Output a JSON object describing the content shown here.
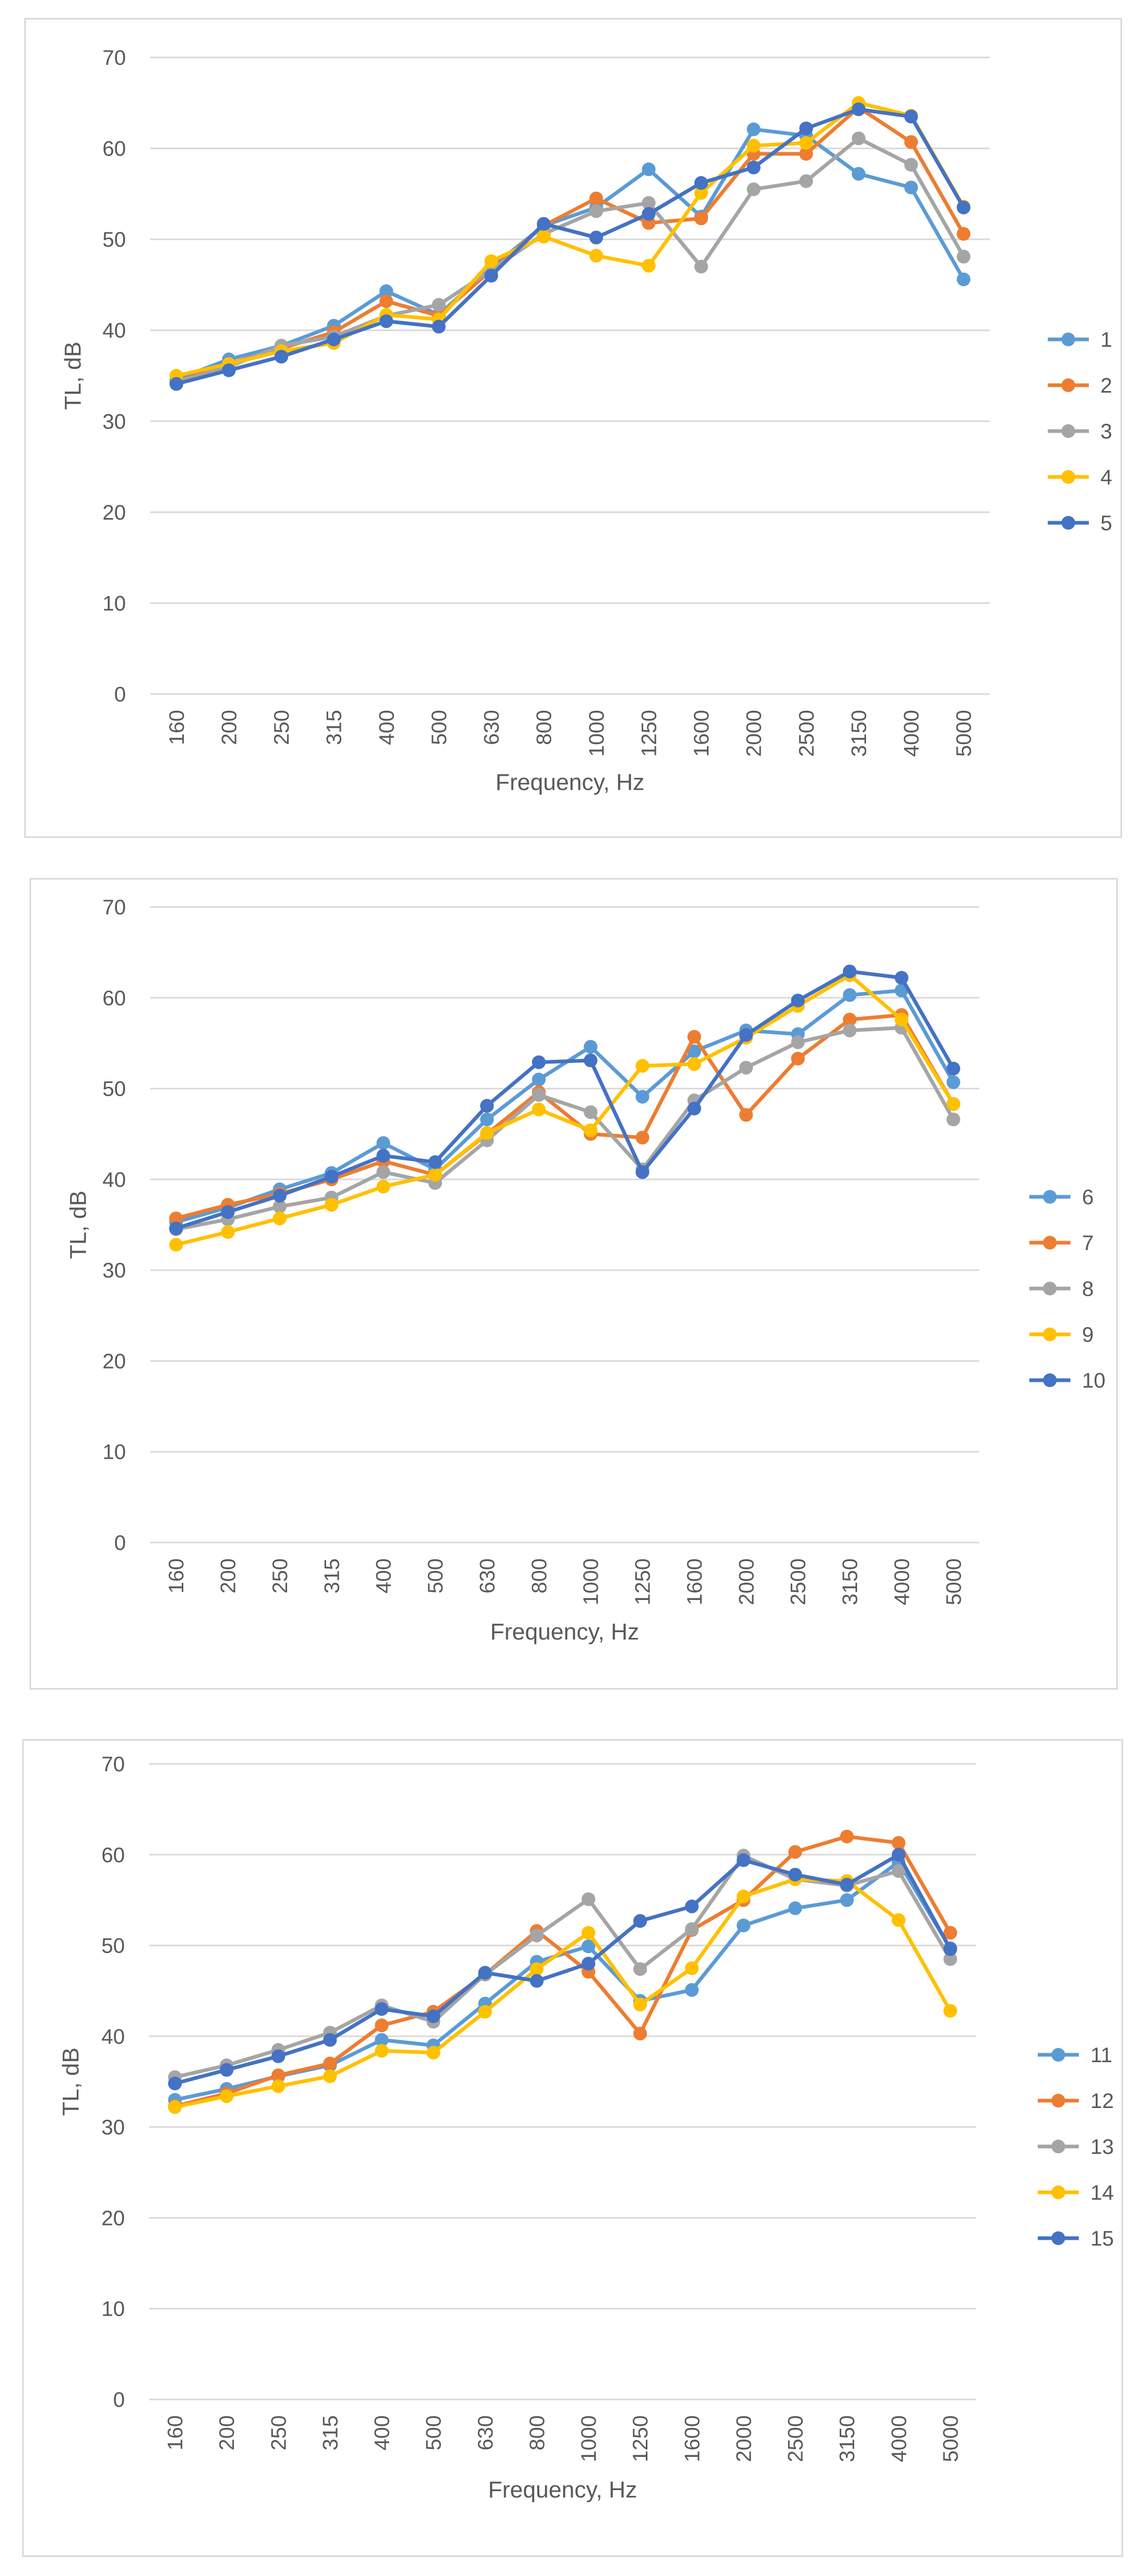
{
  "chart_data": [
    {
      "type": "line",
      "xlabel": "Frequency, Hz",
      "ylabel": "TL, dB",
      "ylim": [
        0,
        70
      ],
      "yticks": [
        0,
        10,
        20,
        30,
        40,
        50,
        60,
        70
      ],
      "grid": true,
      "legend": "right",
      "categories": [
        "160",
        "200",
        "250",
        "315",
        "400",
        "500",
        "630",
        "800",
        "1000",
        "1250",
        "1600",
        "2000",
        "2500",
        "3150",
        "4000",
        "5000"
      ],
      "series": [
        {
          "name": "1",
          "color": "#5B9BD5",
          "values": [
            34.6,
            36.8,
            38.3,
            40.5,
            44.3,
            41.7,
            46.9,
            51.5,
            53.5,
            57.7,
            52.5,
            62.1,
            61.4,
            57.2,
            55.7,
            45.6
          ]
        },
        {
          "name": "2",
          "color": "#ED7D31",
          "values": [
            34.3,
            36.3,
            38.0,
            39.8,
            43.2,
            41.6,
            46.6,
            51.5,
            54.5,
            51.8,
            52.3,
            59.4,
            59.4,
            64.5,
            60.7,
            50.6
          ]
        },
        {
          "name": "3",
          "color": "#A5A5A5",
          "values": [
            34.3,
            36.0,
            38.3,
            39.3,
            41.6,
            42.8,
            46.6,
            50.6,
            53.1,
            54.0,
            47.0,
            55.5,
            56.4,
            61.1,
            58.2,
            48.1
          ]
        },
        {
          "name": "4",
          "color": "#FFC000",
          "values": [
            35.0,
            36.3,
            37.7,
            38.6,
            41.7,
            41.2,
            47.6,
            50.3,
            48.2,
            47.1,
            55.1,
            60.3,
            60.6,
            65.0,
            63.6,
            53.6
          ]
        },
        {
          "name": "5",
          "color": "#4472C4",
          "values": [
            34.1,
            35.6,
            37.1,
            39.0,
            41.0,
            40.4,
            46.0,
            51.7,
            50.2,
            52.8,
            56.2,
            57.9,
            62.2,
            64.3,
            63.5,
            53.5
          ]
        }
      ]
    },
    {
      "type": "line",
      "xlabel": "Frequency, Hz",
      "ylabel": "TL, dB",
      "ylim": [
        0,
        70
      ],
      "yticks": [
        0,
        10,
        20,
        30,
        40,
        50,
        60,
        70
      ],
      "grid": true,
      "legend": "right",
      "categories": [
        "160",
        "200",
        "250",
        "315",
        "400",
        "500",
        "630",
        "800",
        "1000",
        "1250",
        "1600",
        "2000",
        "2500",
        "3150",
        "4000",
        "5000"
      ],
      "series": [
        {
          "name": "6",
          "color": "#5B9BD5",
          "values": [
            35.3,
            36.9,
            38.9,
            40.7,
            44.0,
            41.1,
            46.6,
            51.0,
            54.6,
            49.1,
            54.1,
            56.4,
            56.0,
            60.3,
            60.8,
            50.7
          ]
        },
        {
          "name": "7",
          "color": "#ED7D31",
          "values": [
            35.7,
            37.2,
            38.4,
            40.0,
            42.0,
            40.5,
            45.0,
            49.6,
            45.0,
            44.6,
            55.7,
            47.1,
            53.3,
            57.6,
            58.1,
            48.3
          ]
        },
        {
          "name": "8",
          "color": "#A5A5A5",
          "values": [
            34.5,
            35.6,
            37.0,
            38.0,
            40.8,
            39.6,
            44.3,
            49.3,
            47.4,
            41.1,
            48.7,
            52.3,
            55.1,
            56.4,
            56.7,
            46.6
          ]
        },
        {
          "name": "9",
          "color": "#FFC000",
          "values": [
            32.8,
            34.2,
            35.7,
            37.2,
            39.2,
            40.5,
            45.1,
            47.7,
            45.4,
            52.5,
            52.7,
            55.6,
            59.1,
            62.5,
            57.6,
            48.3
          ]
        },
        {
          "name": "10",
          "color": "#4472C4",
          "values": [
            34.6,
            36.4,
            38.2,
            40.3,
            42.6,
            41.9,
            48.1,
            52.9,
            53.1,
            40.8,
            47.8,
            55.9,
            59.7,
            62.9,
            62.2,
            52.2
          ]
        }
      ]
    },
    {
      "type": "line",
      "xlabel": "Frequency, Hz",
      "ylabel": "TL, dB",
      "ylim": [
        0,
        70
      ],
      "yticks": [
        0,
        10,
        20,
        30,
        40,
        50,
        60,
        70
      ],
      "grid": true,
      "legend": "right",
      "categories": [
        "160",
        "200",
        "250",
        "315",
        "400",
        "500",
        "630",
        "800",
        "1000",
        "1250",
        "1600",
        "2000",
        "2500",
        "3150",
        "4000",
        "5000"
      ],
      "series": [
        {
          "name": "11",
          "color": "#5B9BD5",
          "values": [
            33.0,
            34.2,
            35.6,
            36.8,
            39.6,
            39.0,
            43.6,
            48.2,
            49.9,
            43.9,
            45.1,
            52.2,
            54.1,
            55.0,
            59.2,
            49.7
          ]
        },
        {
          "name": "12",
          "color": "#ED7D31",
          "values": [
            32.3,
            33.7,
            35.7,
            37.0,
            41.2,
            42.7,
            46.8,
            51.6,
            47.1,
            40.3,
            51.7,
            55.0,
            60.3,
            62.0,
            61.3,
            51.4
          ]
        },
        {
          "name": "13",
          "color": "#A5A5A5",
          "values": [
            35.5,
            36.8,
            38.5,
            40.4,
            43.4,
            41.6,
            46.8,
            51.1,
            55.1,
            47.4,
            51.8,
            59.9,
            57.3,
            56.6,
            58.2,
            48.5
          ]
        },
        {
          "name": "14",
          "color": "#FFC000",
          "values": [
            32.2,
            33.4,
            34.5,
            35.6,
            38.4,
            38.2,
            42.7,
            47.4,
            51.4,
            43.5,
            47.5,
            55.4,
            57.3,
            57.1,
            52.8,
            42.8
          ]
        },
        {
          "name": "15",
          "color": "#4472C4",
          "values": [
            34.8,
            36.3,
            37.8,
            39.6,
            43.0,
            42.2,
            47.0,
            46.1,
            48.0,
            52.7,
            54.3,
            59.4,
            57.8,
            56.7,
            60.0,
            49.6
          ]
        }
      ]
    }
  ]
}
